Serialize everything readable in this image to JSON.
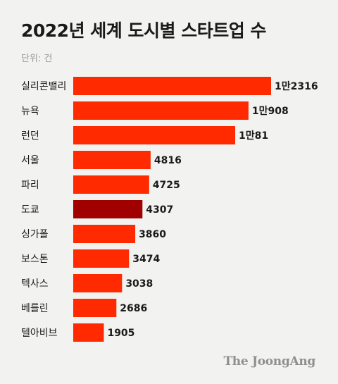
{
  "title": "2022년 세계 도시별 스타트업 수",
  "unit_label": "단위: 건",
  "source": "The JoongAng",
  "colors": {
    "bar": "#ff2a00",
    "highlight": "#a00000",
    "text": "#1a1a1a",
    "background": "#f2f2f0"
  },
  "chart_data": {
    "type": "bar",
    "orientation": "horizontal",
    "categories": [
      "실리콘밸리",
      "뉴욕",
      "런던",
      "서울",
      "파리",
      "도쿄",
      "싱가폴",
      "보스톤",
      "텍사스",
      "베를린",
      "텔아비브"
    ],
    "values": [
      12316,
      10908,
      10081,
      4816,
      4725,
      4307,
      3860,
      3474,
      3038,
      2686,
      1905
    ],
    "value_labels": [
      "1만2316",
      "1만908",
      "1만81",
      "4816",
      "4725",
      "4307",
      "3860",
      "3474",
      "3038",
      "2686",
      "1905"
    ],
    "highlight_category": "도쿄",
    "xlim": [
      0,
      12316
    ]
  }
}
